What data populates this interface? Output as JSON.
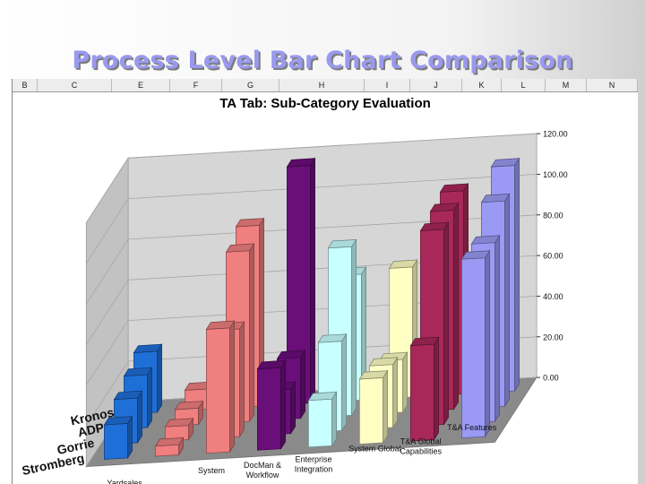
{
  "slide": {
    "title": "Process Level Bar Chart Comparison"
  },
  "spreadsheet": {
    "columns": [
      "B",
      "C",
      "E",
      "F",
      "G",
      "H",
      "I",
      "J",
      "K",
      "L",
      "M",
      "N"
    ]
  },
  "chart_data": {
    "type": "bar",
    "subtype": "3d-column",
    "title": "TA Tab: Sub-Category Evaluation",
    "xlabel": "",
    "ylabel": "",
    "ylim": [
      0,
      120
    ],
    "yticks": [
      "0.00",
      "20.00",
      "40.00",
      "60.00",
      "80.00",
      "100.00",
      "120.00"
    ],
    "grid": true,
    "legend": "none",
    "categories": [
      "Yardsales",
      "",
      "System",
      "DocMan & Workflow",
      "Enterprise Integration",
      "System Global",
      "T&A Global Capabilities",
      "T&A Features"
    ],
    "category_labels": {
      "Yardsales": "Yardsales",
      "System": "System",
      "DocMan": "DocMan &",
      "Workflow": "Workflow",
      "Enterprise": "Enterprise",
      "Integration": "Integration",
      "SystemGlobal": "System Global",
      "TAGlobal": "T&A Global",
      "Capabilities": "Capabilities",
      "TAFeatures": "T&A Features"
    },
    "series": [
      {
        "name": "Kronos",
        "values": [
          30,
          10,
          89,
          117,
          62,
          64,
          100,
          111
        ]
      },
      {
        "name": "ADP",
        "values": [
          26,
          8,
          84,
          30,
          83,
          26,
          98,
          101
        ]
      },
      {
        "name": "Gorrie",
        "values": [
          22,
          7,
          53,
          22,
          44,
          31,
          96,
          88
        ]
      },
      {
        "name": "Stromberg",
        "values": [
          17,
          5,
          61,
          40,
          23,
          32,
          47,
          88
        ]
      }
    ],
    "colors": {
      "categories": [
        "#1f6fd8",
        "#f07f7f",
        "#f07f7f",
        "#6a0e7a",
        "#c8ffff",
        "#ffffc4",
        "#a8285a",
        "#9a9af5"
      ],
      "wall": "#d6d6d6",
      "floor": "#8a8a8a",
      "gridline": "#a6a6a6"
    }
  }
}
